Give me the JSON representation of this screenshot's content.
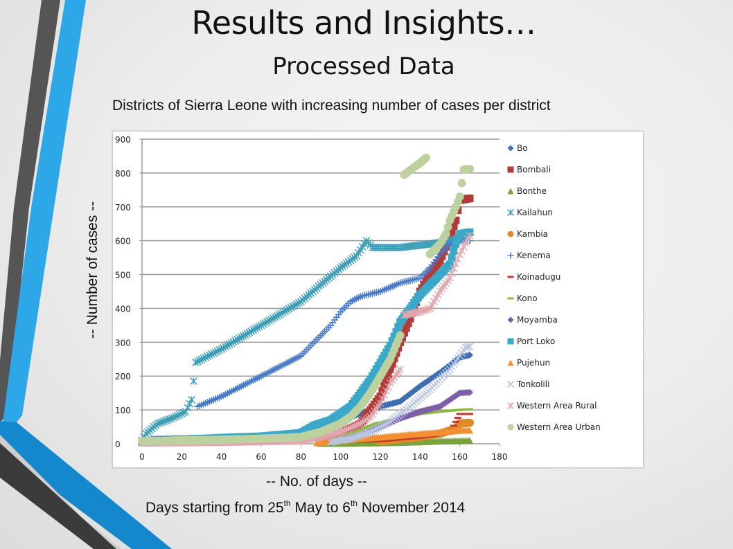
{
  "slide": {
    "title": "Results and Insights…",
    "subtitle": "Processed Data",
    "chart_caption": "Districts of Sierra Leone with increasing number of cases per district",
    "y_axis_note": "-- Number of cases --",
    "x_axis_note": "-- No. of days --",
    "date_note": {
      "part1": "Days starting from 25",
      "sup1": "th",
      "part2": " May to 6",
      "sup2": "th",
      "part3": " November 2014"
    }
  },
  "chart_data": {
    "type": "scatter",
    "title": "Districts of Sierra Leone with increasing number of cases per district",
    "xlabel": "-- No. of days --",
    "ylabel": "-- Number of cases --",
    "xlim": [
      0,
      180
    ],
    "ylim": [
      0,
      900
    ],
    "x_ticks": [
      0,
      20,
      40,
      60,
      80,
      100,
      120,
      140,
      160,
      180
    ],
    "y_ticks": [
      0,
      100,
      200,
      300,
      400,
      500,
      600,
      700,
      800,
      900
    ],
    "grid": "horizontal",
    "legend_position": "right",
    "series": [
      {
        "name": "Bo",
        "color": "#3d6eb0",
        "marker": "diamond",
        "points": [
          [
            5,
            14
          ],
          [
            20,
            16
          ],
          [
            40,
            18
          ],
          [
            60,
            20
          ],
          [
            80,
            24
          ],
          [
            90,
            40
          ],
          [
            100,
            65
          ],
          [
            110,
            90
          ],
          [
            120,
            110
          ],
          [
            130,
            125
          ],
          [
            140,
            170
          ],
          [
            150,
            210
          ],
          [
            160,
            255
          ],
          [
            165,
            262
          ]
        ]
      },
      {
        "name": "Bombali",
        "color": "#b23a38",
        "marker": "square",
        "points": [
          [
            90,
            10
          ],
          [
            100,
            30
          ],
          [
            110,
            60
          ],
          [
            115,
            100
          ],
          [
            120,
            140
          ],
          [
            125,
            220
          ],
          [
            130,
            300
          ],
          [
            135,
            370
          ],
          [
            140,
            450
          ],
          [
            145,
            500
          ],
          [
            150,
            540
          ],
          [
            155,
            610
          ],
          [
            158,
            660
          ],
          [
            160,
            720
          ],
          [
            165,
            725
          ]
        ]
      },
      {
        "name": "Bonthe",
        "color": "#79a33d",
        "marker": "triangle",
        "points": [
          [
            90,
            1
          ],
          [
            110,
            2
          ],
          [
            130,
            4
          ],
          [
            140,
            6
          ],
          [
            150,
            8
          ],
          [
            160,
            9
          ],
          [
            165,
            10
          ]
        ]
      },
      {
        "name": "Kailahun",
        "color": "#3b9db6",
        "marker": "asterisk",
        "points": [
          [
            0,
            10
          ],
          [
            2,
            30
          ],
          [
            5,
            45
          ],
          [
            8,
            60
          ],
          [
            15,
            75
          ],
          [
            22,
            95
          ],
          [
            25,
            130
          ],
          [
            27,
            240
          ],
          [
            40,
            280
          ],
          [
            60,
            350
          ],
          [
            80,
            420
          ],
          [
            90,
            470
          ],
          [
            100,
            520
          ],
          [
            108,
            555
          ],
          [
            113,
            600
          ],
          [
            116,
            580
          ],
          [
            130,
            580
          ],
          [
            145,
            590
          ],
          [
            155,
            600
          ],
          [
            163,
            610
          ]
        ]
      },
      {
        "name": "Kambia",
        "color": "#e08a2c",
        "marker": "circle",
        "points": [
          [
            120,
            8
          ],
          [
            140,
            20
          ],
          [
            150,
            30
          ],
          [
            158,
            45
          ],
          [
            160,
            60
          ],
          [
            165,
            62
          ]
        ]
      },
      {
        "name": "Kenema",
        "color": "#4a7bc8",
        "marker": "plus",
        "points": [
          [
            28,
            110
          ],
          [
            40,
            140
          ],
          [
            60,
            200
          ],
          [
            80,
            260
          ],
          [
            90,
            320
          ],
          [
            95,
            350
          ],
          [
            100,
            390
          ],
          [
            105,
            420
          ],
          [
            110,
            435
          ],
          [
            120,
            450
          ],
          [
            130,
            475
          ],
          [
            140,
            490
          ],
          [
            145,
            520
          ],
          [
            150,
            560
          ],
          [
            155,
            590
          ],
          [
            160,
            600
          ],
          [
            165,
            600
          ]
        ]
      },
      {
        "name": "Koinadugu",
        "color": "#c0392b",
        "marker": "dash",
        "points": [
          [
            100,
            4
          ],
          [
            120,
            8
          ],
          [
            140,
            18
          ],
          [
            150,
            26
          ],
          [
            155,
            30
          ],
          [
            160,
            88
          ],
          [
            165,
            88
          ]
        ]
      },
      {
        "name": "Kono",
        "color": "#8cb83f",
        "marker": "dash",
        "points": [
          [
            100,
            20
          ],
          [
            110,
            40
          ],
          [
            118,
            60
          ],
          [
            130,
            75
          ],
          [
            140,
            88
          ],
          [
            150,
            95
          ],
          [
            160,
            100
          ],
          [
            165,
            102
          ]
        ]
      },
      {
        "name": "Moyamba",
        "color": "#7d5ea8",
        "marker": "diamond",
        "points": [
          [
            100,
            10
          ],
          [
            110,
            25
          ],
          [
            120,
            50
          ],
          [
            130,
            75
          ],
          [
            140,
            95
          ],
          [
            150,
            110
          ],
          [
            155,
            130
          ],
          [
            160,
            150
          ],
          [
            165,
            152
          ]
        ]
      },
      {
        "name": "Port Loko",
        "color": "#3aa8c8",
        "marker": "square",
        "points": [
          [
            0,
            5
          ],
          [
            20,
            12
          ],
          [
            40,
            18
          ],
          [
            60,
            22
          ],
          [
            80,
            32
          ],
          [
            87,
            55
          ],
          [
            95,
            70
          ],
          [
            100,
            90
          ],
          [
            105,
            110
          ],
          [
            110,
            150
          ],
          [
            115,
            190
          ],
          [
            120,
            240
          ],
          [
            125,
            290
          ],
          [
            128,
            330
          ],
          [
            130,
            360
          ],
          [
            135,
            400
          ],
          [
            140,
            440
          ],
          [
            145,
            470
          ],
          [
            150,
            500
          ],
          [
            155,
            530
          ],
          [
            158,
            590
          ],
          [
            160,
            620
          ],
          [
            165,
            625
          ]
        ]
      },
      {
        "name": "Pujehun",
        "color": "#f28f33",
        "marker": "triangle",
        "points": [
          [
            88,
            3
          ],
          [
            100,
            10
          ],
          [
            110,
            15
          ],
          [
            120,
            20
          ],
          [
            130,
            25
          ],
          [
            140,
            30
          ],
          [
            150,
            34
          ],
          [
            160,
            40
          ],
          [
            165,
            40
          ]
        ]
      },
      {
        "name": "Tonkolili",
        "color": "#b9c6e3",
        "marker": "x",
        "points": [
          [
            95,
            5
          ],
          [
            105,
            15
          ],
          [
            115,
            35
          ],
          [
            125,
            65
          ],
          [
            135,
            110
          ],
          [
            145,
            160
          ],
          [
            150,
            190
          ],
          [
            155,
            220
          ],
          [
            160,
            260
          ],
          [
            163,
            285
          ],
          [
            165,
            287
          ]
        ]
      },
      {
        "name": "Western Area Rural",
        "color": "#e0a8ae",
        "marker": "asterisk",
        "points": [
          [
            0,
            2
          ],
          [
            40,
            4
          ],
          [
            80,
            8
          ],
          [
            90,
            20
          ],
          [
            100,
            35
          ],
          [
            110,
            60
          ],
          [
            115,
            80
          ],
          [
            120,
            120
          ],
          [
            125,
            180
          ],
          [
            130,
            220
          ],
          [
            132,
            380
          ],
          [
            140,
            390
          ],
          [
            145,
            400
          ],
          [
            150,
            450
          ],
          [
            155,
            490
          ],
          [
            160,
            560
          ],
          [
            165,
            615
          ]
        ]
      },
      {
        "name": "Western Area Urban",
        "color": "#bdd19e",
        "marker": "circle",
        "points": [
          [
            0,
            8
          ],
          [
            20,
            10
          ],
          [
            40,
            12
          ],
          [
            60,
            15
          ],
          [
            80,
            20
          ],
          [
            90,
            35
          ],
          [
            100,
            60
          ],
          [
            105,
            80
          ],
          [
            110,
            110
          ],
          [
            115,
            150
          ],
          [
            120,
            200
          ],
          [
            125,
            250
          ],
          [
            130,
            320
          ],
          [
            132,
            795
          ],
          [
            140,
            830
          ],
          [
            143,
            845
          ],
          [
            145,
            560
          ],
          [
            150,
            590
          ],
          [
            153,
            620
          ],
          [
            155,
            660
          ],
          [
            158,
            700
          ],
          [
            160,
            730
          ],
          [
            162,
            810
          ],
          [
            165,
            812
          ]
        ]
      }
    ]
  }
}
